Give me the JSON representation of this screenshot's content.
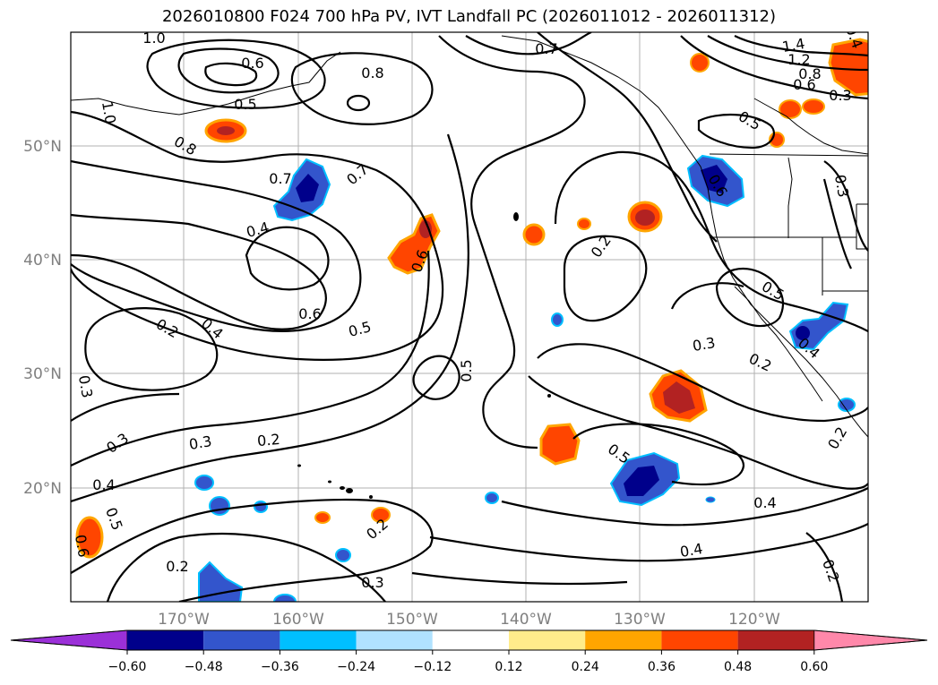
{
  "title": "2026010800 F024 700 hPa PV, IVT Landfall PC (2026011012 - 2026011312)",
  "axes": {
    "lat_labels": [
      "50°N",
      "40°N",
      "30°N",
      "20°N"
    ],
    "lon_labels": [
      "170°W",
      "160°W",
      "150°W",
      "140°W",
      "130°W",
      "120°W"
    ]
  },
  "colorbar": {
    "ticks": [
      "−0.60",
      "−0.48",
      "−0.36",
      "−0.24",
      "−0.12",
      "0.12",
      "0.24",
      "0.36",
      "0.48",
      "0.60"
    ],
    "colors": {
      "under": "#9b30d8",
      "b1": "#00008b",
      "b2": "#3355cc",
      "b3": "#00bfff",
      "b4": "#b0e2ff",
      "b5": "#ffffff",
      "b6": "#ffec8b",
      "b7": "#ffa500",
      "b8": "#ff4500",
      "b9": "#b22222",
      "over": "#ff88aa"
    }
  },
  "contour_labels": [
    "1.0",
    "0.6",
    "0.5",
    "0.8",
    "0.8",
    "1.0",
    "0.7",
    "0.7",
    "0.4",
    "0.6",
    "0.6",
    "0.5",
    "0.2",
    "0.4",
    "0.3",
    "0.3",
    "0.3",
    "0.2",
    "0.4",
    "0.5",
    "0.6",
    "0.2",
    "0.3",
    "0.2",
    "0.5",
    "0.7",
    "0.2",
    "0.5",
    "0.6",
    "0.3",
    "0.2",
    "0.4",
    "0.4",
    "0.2",
    "0.2",
    "1.4",
    "1.2",
    "0.8",
    "0.6",
    "0.3",
    "0.3",
    "0.5",
    "0.5",
    "0.4",
    "0.4"
  ]
}
